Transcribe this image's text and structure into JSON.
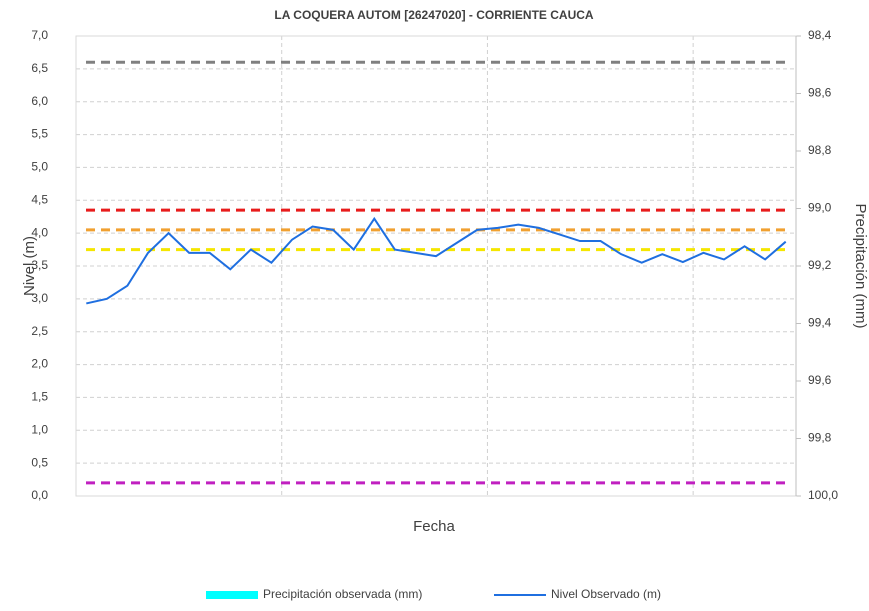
{
  "chart_data": {
    "type": "line",
    "title": "LA COQUERA AUTOM [26247020] - CORRIENTE CAUCA",
    "xlabel": "Fecha",
    "ylabel": "Nivel (m)",
    "y2label": "Precipitación (mm)",
    "categories": [
      null,
      null,
      null,
      null,
      null,
      null,
      null,
      null,
      null,
      null,
      null,
      null,
      null,
      null,
      null,
      null,
      null,
      null,
      null,
      null,
      null,
      null,
      null,
      null,
      null,
      null,
      null,
      null,
      null,
      null,
      null,
      null,
      null,
      null,
      null
    ],
    "series": [
      {
        "name": "Precipitación observada (mm)",
        "color": "#00ffff",
        "axis": "y2",
        "values": [
          null,
          null,
          null,
          null,
          null,
          null,
          null,
          null,
          null,
          null,
          null,
          null,
          null,
          null,
          null,
          null,
          null,
          null,
          null,
          null,
          null,
          null,
          null,
          null,
          null,
          null,
          null,
          null,
          null,
          null,
          null,
          null,
          null,
          null,
          null
        ]
      },
      {
        "name": "Nivel Observado (m)",
        "color": "#1f6fe0",
        "values": [
          2.93,
          3.0,
          3.2,
          3.7,
          4.0,
          3.7,
          3.7,
          3.45,
          3.75,
          3.55,
          3.9,
          4.1,
          4.05,
          3.75,
          4.22,
          3.75,
          3.7,
          3.65,
          3.85,
          4.05,
          4.08,
          4.13,
          4.08,
          3.98,
          3.88,
          3.88,
          3.68,
          3.55,
          3.68,
          3.56,
          3.7,
          3.6,
          3.8,
          3.6,
          3.87
        ]
      }
    ],
    "thresholds": [
      {
        "value": 6.6,
        "color": "#808080"
      },
      {
        "value": 4.35,
        "color": "#e81c1c"
      },
      {
        "value": 4.05,
        "color": "#f0a030"
      },
      {
        "value": 3.75,
        "color": "#f5e600"
      },
      {
        "value": 0.2,
        "color": "#c020c0"
      }
    ],
    "ylim": [
      0,
      7
    ],
    "yticks": [
      {
        "value": 0,
        "label": "0,0"
      },
      {
        "value": 0.5,
        "label": "0,5"
      },
      {
        "value": 1,
        "label": "1,0"
      },
      {
        "value": 1.5,
        "label": "1,5"
      },
      {
        "value": 2,
        "label": "2,0"
      },
      {
        "value": 2.5,
        "label": "2,5"
      },
      {
        "value": 3,
        "label": "3,0"
      },
      {
        "value": 3.5,
        "label": "3,5"
      },
      {
        "value": 4,
        "label": "4,0"
      },
      {
        "value": 4.5,
        "label": "4,5"
      },
      {
        "value": 5,
        "label": "5,0"
      },
      {
        "value": 5.5,
        "label": "5,5"
      },
      {
        "value": 6,
        "label": "6,0"
      },
      {
        "value": 6.5,
        "label": "6,5"
      },
      {
        "value": 7,
        "label": "7,0"
      }
    ],
    "y2lim": [
      98.4,
      100.0
    ],
    "y2_reversed": true,
    "y2ticks": [
      {
        "value": 98.4,
        "label": "98,4"
      },
      {
        "value": 98.6,
        "label": "98,6"
      },
      {
        "value": 98.8,
        "label": "98,8"
      },
      {
        "value": 99.0,
        "label": "99,0"
      },
      {
        "value": 99.2,
        "label": "99,2"
      },
      {
        "value": 99.4,
        "label": "99,4"
      },
      {
        "value": 99.6,
        "label": "99,6"
      },
      {
        "value": 99.8,
        "label": "99,8"
      },
      {
        "value": 100.0,
        "label": "100,0"
      }
    ],
    "grid": true,
    "legend": "bottom"
  }
}
